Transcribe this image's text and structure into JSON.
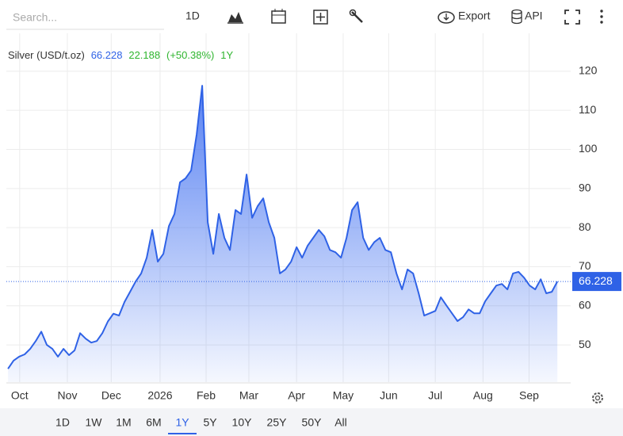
{
  "toolbar": {
    "search_placeholder": "Search...",
    "interval": "1D",
    "export": "Export",
    "api": "API"
  },
  "chart_data": {
    "type": "area",
    "series_name": "Silver (USD/t.oz)",
    "last": 66.228,
    "change": 22.188,
    "change_pct_label": "(+50.38%)",
    "period": "1Y",
    "color": "#2f62e6",
    "values": [
      43.9,
      46,
      47,
      47.6,
      49,
      51,
      53.4,
      50,
      49,
      47,
      49,
      47.4,
      48.6,
      53,
      51.6,
      50.6,
      51,
      53,
      56,
      58,
      57.5,
      61,
      63.6,
      66.2,
      68.3,
      72.3,
      79.4,
      71.3,
      73.3,
      80.4,
      83.5,
      91.6,
      92.6,
      94.6,
      103.8,
      116.3,
      81.4,
      73.3,
      83.5,
      77.4,
      74.3,
      84.5,
      83.5,
      93.6,
      82.5,
      85.5,
      87.5,
      81.4,
      77.4,
      68.3,
      69.3,
      71.3,
      75,
      72.3,
      75.4,
      77.4,
      79.4,
      77.8,
      74.3,
      73.7,
      72.3,
      77.4,
      84.5,
      86.5,
      77.4,
      74.3,
      76.3,
      77.4,
      74.3,
      73.7,
      68.3,
      64.2,
      69.3,
      68.3,
      63.2,
      57.5,
      58.1,
      58.7,
      62.2,
      60.1,
      58.1,
      56.1,
      57.1,
      59.1,
      58.1,
      58.1,
      61.2,
      63.2,
      65.2,
      65.6,
      64.2,
      68.3,
      68.7,
      67.2,
      65.2,
      64.2,
      66.8,
      63.2,
      63.6,
      66.228
    ],
    "xlim": [
      -0.3,
      101.4
    ],
    "xticks": [
      {
        "value": 2.1,
        "label": "Oct"
      },
      {
        "value": 10.7,
        "label": "Nov"
      },
      {
        "value": 18.6,
        "label": "Dec"
      },
      {
        "value": 27.4,
        "label": "2026"
      },
      {
        "value": 35.7,
        "label": "Feb"
      },
      {
        "value": 43.4,
        "label": "Mar"
      },
      {
        "value": 52,
        "label": "Apr"
      },
      {
        "value": 60.4,
        "label": "May"
      },
      {
        "value": 68.6,
        "label": "Jun"
      },
      {
        "value": 77,
        "label": "Jul"
      },
      {
        "value": 85.6,
        "label": "Aug"
      },
      {
        "value": 93.9,
        "label": "Sep"
      }
    ],
    "ylim": [
      40.5,
      129.7
    ],
    "yticks": [
      50,
      60,
      70,
      80,
      90,
      100,
      110,
      120
    ],
    "grid": true
  },
  "range_buttons": {
    "items": [
      "1D",
      "1W",
      "1M",
      "6M",
      "1Y",
      "5Y",
      "10Y",
      "25Y",
      "50Y",
      "All"
    ],
    "selected": "1Y"
  }
}
